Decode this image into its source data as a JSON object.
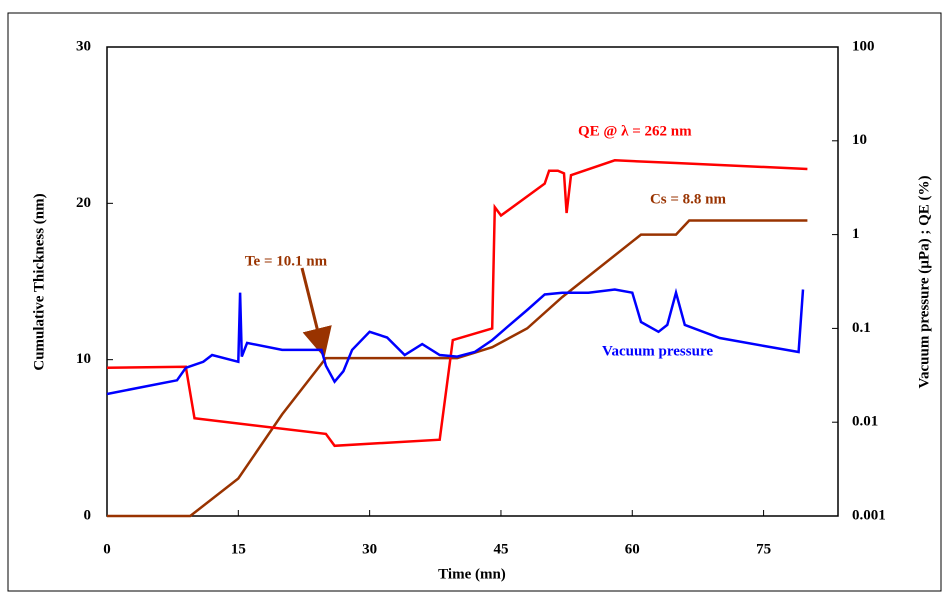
{
  "chart_data": {
    "type": "line",
    "xlabel": "Time (mn)",
    "ylabel": "Cumulative Thickness (nm)",
    "y2label": "Vacuum pressure (µPa) ; QE (%)",
    "xlim": [
      0,
      83.5
    ],
    "xticks": [
      0,
      15,
      30,
      45,
      60,
      75
    ],
    "ylim": [
      0,
      30
    ],
    "yticks": [
      0,
      10,
      20,
      30
    ],
    "y2lim": [
      0.001,
      100
    ],
    "y2ticks": [
      100,
      10,
      1,
      0.1,
      0.01,
      0.001
    ],
    "y2scale": "log",
    "annotations": [
      {
        "text": "Te = 10.1 nm",
        "color": "#993300"
      }
    ],
    "series": [
      {
        "name": "Cs = 8.8 nm",
        "color": "#993300",
        "axis": "y",
        "x": [
          0,
          9.5,
          15,
          20,
          25,
          40,
          44,
          48,
          52,
          61,
          65,
          66.5,
          80
        ],
        "values": [
          0,
          0,
          2.4,
          6.5,
          10.1,
          10.1,
          10.8,
          12,
          14,
          18,
          18,
          18.9,
          18.9
        ]
      },
      {
        "name": "QE @ λ = 262 nm",
        "color": "#ff0000",
        "axis": "y2",
        "x": [
          0,
          9,
          10,
          25,
          26,
          38,
          39.5,
          44,
          44.3,
          45,
          50,
          50.5,
          51.5,
          52.2,
          52.5,
          53,
          58,
          65,
          80
        ],
        "values": [
          0.038,
          0.039,
          0.011,
          0.0075,
          0.0056,
          0.0065,
          0.075,
          0.1,
          1.96,
          1.6,
          3.5,
          4.8,
          4.8,
          4.5,
          1.7,
          4.3,
          6.2,
          5.8,
          5.0
        ]
      },
      {
        "name": "Vacuum pressure",
        "color": "#0000ff",
        "axis": "y2",
        "x": [
          0,
          8,
          9,
          11,
          12,
          15,
          15.2,
          15.4,
          16,
          20,
          24.5,
          25,
          26,
          27,
          28,
          30,
          32,
          34,
          36,
          38,
          40,
          42,
          44,
          46,
          48,
          50,
          52,
          55,
          58,
          60,
          61,
          63,
          64,
          65,
          66,
          70,
          75,
          79,
          79.5
        ],
        "values": [
          0.02,
          0.028,
          0.038,
          0.044,
          0.052,
          0.044,
          0.24,
          0.05,
          0.07,
          0.059,
          0.059,
          0.04,
          0.027,
          0.035,
          0.059,
          0.092,
          0.08,
          0.052,
          0.068,
          0.052,
          0.05,
          0.056,
          0.075,
          0.109,
          0.157,
          0.23,
          0.24,
          0.24,
          0.26,
          0.24,
          0.117,
          0.092,
          0.109,
          0.24,
          0.109,
          0.079,
          0.065,
          0.056,
          0.26
        ]
      }
    ]
  }
}
